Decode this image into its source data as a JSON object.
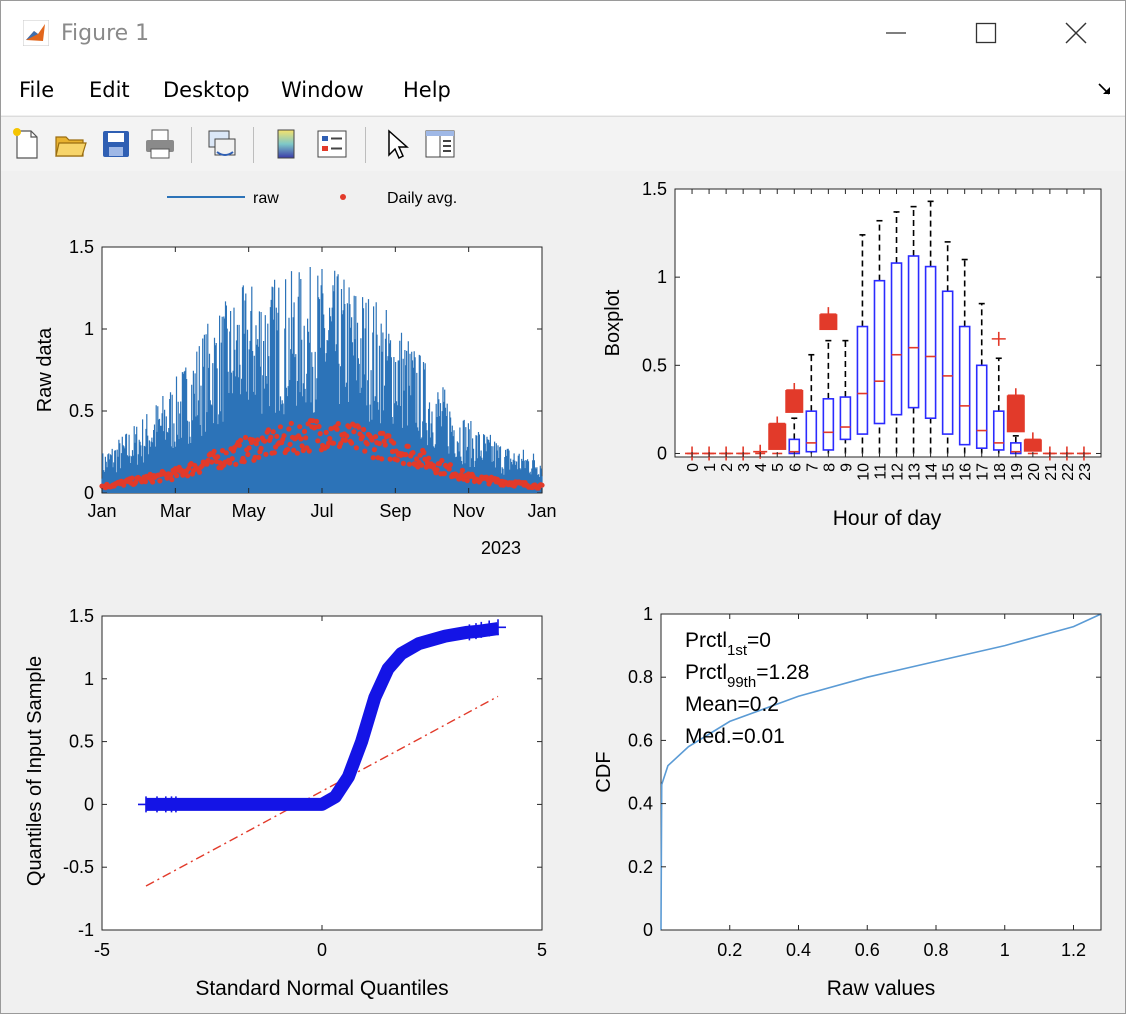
{
  "window": {
    "title": "Figure 1"
  },
  "menu": [
    "File",
    "Edit",
    "Desktop",
    "Window",
    "Help"
  ],
  "toolbar_icons": [
    "new-file-icon",
    "open-folder-icon",
    "save-icon",
    "print-icon",
    "link-plot-icon",
    "colorbar-icon",
    "legend-icon",
    "pointer-icon",
    "property-editor-icon"
  ],
  "colors": {
    "raw": "#2c73b8",
    "daily": "#e23a2a",
    "box": "#2b2bff",
    "median": "#e23a2a",
    "qq": "#1414e6",
    "cdf": "#5b9bd5"
  },
  "chart_data": [
    {
      "type": "line",
      "ylabel": "Raw data",
      "legend": [
        "raw",
        "Daily avg."
      ],
      "legend_placement": "top",
      "x_ticks": [
        "Jan",
        "Mar",
        "May",
        "Jul",
        "Sep",
        "Nov",
        "Jan"
      ],
      "x_year": "2023",
      "y_ticks": [
        "0",
        "0.5",
        "1",
        "1.5"
      ],
      "ylim": [
        0,
        1.5
      ],
      "raw_envelope": [
        {
          "month": 0,
          "max": 0.25
        },
        {
          "month": 1,
          "max": 0.45
        },
        {
          "month": 2,
          "max": 0.7
        },
        {
          "month": 3,
          "max": 1.1
        },
        {
          "month": 4,
          "max": 1.3
        },
        {
          "month": 5,
          "max": 1.35
        },
        {
          "month": 6,
          "max": 1.4
        },
        {
          "month": 7,
          "max": 1.3
        },
        {
          "month": 8,
          "max": 1.1
        },
        {
          "month": 9,
          "max": 0.75
        },
        {
          "month": 10,
          "max": 0.45
        },
        {
          "month": 11,
          "max": 0.3
        },
        {
          "month": 12,
          "max": 0.25
        }
      ],
      "daily_avg_envelope": [
        {
          "month": 0,
          "max": 0.05
        },
        {
          "month": 2,
          "max": 0.15
        },
        {
          "month": 4,
          "max": 0.35
        },
        {
          "month": 6,
          "max": 0.48
        },
        {
          "month": 8,
          "max": 0.35
        },
        {
          "month": 10,
          "max": 0.12
        },
        {
          "month": 12,
          "max": 0.05
        }
      ]
    },
    {
      "type": "box",
      "xlabel": "Hour of day",
      "ylabel": "Boxplot",
      "categories": [
        "0",
        "1",
        "2",
        "3",
        "4",
        "5",
        "6",
        "7",
        "8",
        "9",
        "10",
        "11",
        "12",
        "13",
        "14",
        "15",
        "16",
        "17",
        "18",
        "19",
        "20",
        "21",
        "22",
        "23"
      ],
      "y_ticks": [
        "0",
        "0.5",
        "1",
        "1.5"
      ],
      "ylim": [
        0,
        1.5
      ],
      "boxes": [
        {
          "hour": 0,
          "q1": 0,
          "med": 0,
          "q3": 0,
          "lo": 0,
          "hi": 0,
          "out": [
            0
          ]
        },
        {
          "hour": 1,
          "q1": 0,
          "med": 0,
          "q3": 0,
          "lo": 0,
          "hi": 0,
          "out": [
            0
          ]
        },
        {
          "hour": 2,
          "q1": 0,
          "med": 0,
          "q3": 0,
          "lo": 0,
          "hi": 0,
          "out": [
            0
          ]
        },
        {
          "hour": 3,
          "q1": 0,
          "med": 0,
          "q3": 0,
          "lo": 0,
          "hi": 0,
          "out": [
            0
          ]
        },
        {
          "hour": 4,
          "q1": 0,
          "med": 0,
          "q3": 0,
          "lo": 0,
          "hi": 0,
          "out": [
            0.01
          ]
        },
        {
          "hour": 5,
          "q1": 0,
          "med": 0,
          "q3": 0,
          "lo": 0,
          "hi": 0,
          "out_band": [
            0.02,
            0.17
          ]
        },
        {
          "hour": 6,
          "q1": 0,
          "med": 0.01,
          "q3": 0.08,
          "lo": 0,
          "hi": 0.2,
          "out_band": [
            0.23,
            0.36
          ]
        },
        {
          "hour": 7,
          "q1": 0.01,
          "med": 0.06,
          "q3": 0.24,
          "lo": 0,
          "hi": 0.56,
          "out": []
        },
        {
          "hour": 8,
          "q1": 0.02,
          "med": 0.12,
          "q3": 0.31,
          "lo": 0,
          "hi": 0.64,
          "out_band": [
            0.7,
            0.79
          ]
        },
        {
          "hour": 9,
          "q1": 0.08,
          "med": 0.15,
          "q3": 0.32,
          "lo": 0,
          "hi": 0.64,
          "out": []
        },
        {
          "hour": 10,
          "q1": 0.11,
          "med": 0.34,
          "q3": 0.72,
          "lo": 0,
          "hi": 1.24,
          "out": []
        },
        {
          "hour": 11,
          "q1": 0.17,
          "med": 0.41,
          "q3": 0.98,
          "lo": 0,
          "hi": 1.32,
          "out": []
        },
        {
          "hour": 12,
          "q1": 0.22,
          "med": 0.56,
          "q3": 1.08,
          "lo": 0,
          "hi": 1.37,
          "out": []
        },
        {
          "hour": 13,
          "q1": 0.26,
          "med": 0.6,
          "q3": 1.12,
          "lo": 0,
          "hi": 1.4,
          "out": []
        },
        {
          "hour": 14,
          "q1": 0.2,
          "med": 0.55,
          "q3": 1.06,
          "lo": 0,
          "hi": 1.43,
          "out": []
        },
        {
          "hour": 15,
          "q1": 0.11,
          "med": 0.44,
          "q3": 0.92,
          "lo": 0,
          "hi": 1.2,
          "out": []
        },
        {
          "hour": 16,
          "q1": 0.05,
          "med": 0.27,
          "q3": 0.72,
          "lo": 0,
          "hi": 1.1,
          "out": []
        },
        {
          "hour": 17,
          "q1": 0.03,
          "med": 0.13,
          "q3": 0.5,
          "lo": 0,
          "hi": 0.85,
          "out": []
        },
        {
          "hour": 18,
          "q1": 0.02,
          "med": 0.06,
          "q3": 0.24,
          "lo": 0,
          "hi": 0.54,
          "out": [
            0.65
          ]
        },
        {
          "hour": 19,
          "q1": 0,
          "med": 0.01,
          "q3": 0.06,
          "lo": 0,
          "hi": 0.1,
          "out_band": [
            0.12,
            0.33
          ]
        },
        {
          "hour": 20,
          "q1": 0,
          "med": 0,
          "q3": 0,
          "lo": 0,
          "hi": 0,
          "out_band": [
            0.01,
            0.08
          ]
        },
        {
          "hour": 21,
          "q1": 0,
          "med": 0,
          "q3": 0,
          "lo": 0,
          "hi": 0,
          "out": [
            0
          ]
        },
        {
          "hour": 22,
          "q1": 0,
          "med": 0,
          "q3": 0,
          "lo": 0,
          "hi": 0,
          "out": [
            0
          ]
        },
        {
          "hour": 23,
          "q1": 0,
          "med": 0,
          "q3": 0,
          "lo": 0,
          "hi": 0,
          "out": [
            0
          ]
        }
      ]
    },
    {
      "type": "scatter",
      "xlabel": "Standard Normal Quantiles",
      "ylabel": "Quantiles of Input Sample",
      "x_ticks": [
        "-5",
        "0",
        "5"
      ],
      "y_ticks": [
        "-1",
        "-0.5",
        "0",
        "0.5",
        "1",
        "1.5"
      ],
      "xlim": [
        -5,
        5
      ],
      "ylim": [
        -1,
        1.5
      ],
      "reference_line": [
        {
          "x": -4,
          "y": -0.65
        },
        {
          "x": 4,
          "y": 0.86
        }
      ],
      "sample_curve": [
        {
          "x": -4.0,
          "y": 0
        },
        {
          "x": -3.0,
          "y": 0
        },
        {
          "x": 0,
          "y": 0
        },
        {
          "x": 0.3,
          "y": 0.06
        },
        {
          "x": 0.6,
          "y": 0.22
        },
        {
          "x": 0.9,
          "y": 0.5
        },
        {
          "x": 1.2,
          "y": 0.85
        },
        {
          "x": 1.5,
          "y": 1.08
        },
        {
          "x": 1.8,
          "y": 1.2
        },
        {
          "x": 2.2,
          "y": 1.28
        },
        {
          "x": 2.8,
          "y": 1.34
        },
        {
          "x": 3.3,
          "y": 1.37
        },
        {
          "x": 3.6,
          "y": 1.38
        },
        {
          "x": 4.0,
          "y": 1.4
        }
      ]
    },
    {
      "type": "line",
      "xlabel": "Raw values",
      "ylabel": "CDF",
      "x_ticks": [
        "0.2",
        "0.4",
        "0.6",
        "0.8",
        "1",
        "1.2"
      ],
      "y_ticks": [
        "0",
        "0.2",
        "0.4",
        "0.6",
        "0.8",
        "1"
      ],
      "xlim": [
        0,
        1.28
      ],
      "ylim": [
        0,
        1
      ],
      "annotations": [
        {
          "base": "Prctl",
          "sub": "1st",
          "rest": "=0"
        },
        {
          "base": "Prctl",
          "sub": "99th",
          "rest": "=1.28"
        },
        {
          "base": "Mean=0.2",
          "sub": "",
          "rest": ""
        },
        {
          "base": "Med.=0.01",
          "sub": "",
          "rest": ""
        }
      ],
      "cdf": [
        {
          "x": 0,
          "y": 0
        },
        {
          "x": 0.002,
          "y": 0.46
        },
        {
          "x": 0.02,
          "y": 0.52
        },
        {
          "x": 0.08,
          "y": 0.58
        },
        {
          "x": 0.2,
          "y": 0.66
        },
        {
          "x": 0.4,
          "y": 0.74
        },
        {
          "x": 0.6,
          "y": 0.8
        },
        {
          "x": 0.8,
          "y": 0.85
        },
        {
          "x": 1.0,
          "y": 0.9
        },
        {
          "x": 1.2,
          "y": 0.96
        },
        {
          "x": 1.28,
          "y": 1.0
        }
      ]
    }
  ]
}
